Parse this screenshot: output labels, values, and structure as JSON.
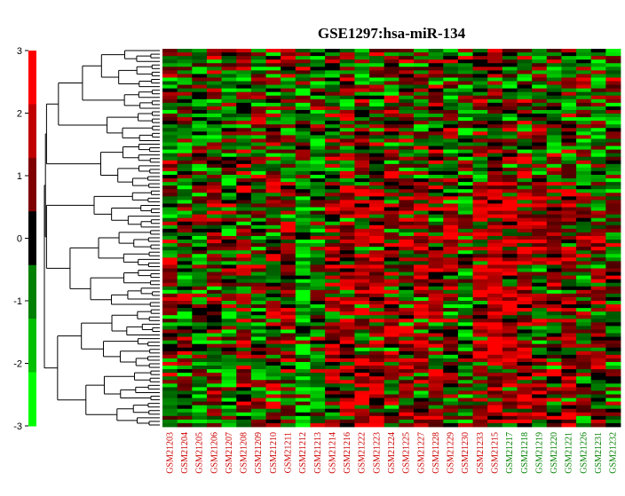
{
  "chart_data": {
    "type": "heatmap",
    "title": "GSE1297:hsa-miR-134",
    "color_scale": {
      "ticks": [
        3,
        2,
        1,
        0,
        -1,
        -2,
        -3
      ],
      "range": [
        -3,
        3
      ],
      "colors": [
        "#00ff00",
        "#00c000",
        "#008000",
        "#000000",
        "#800000",
        "#c00000",
        "#ff0000"
      ]
    },
    "columns": [
      {
        "label": "GSM21203",
        "color": "#cc0000"
      },
      {
        "label": "GSM21204",
        "color": "#cc0000"
      },
      {
        "label": "GSM21205",
        "color": "#cc0000"
      },
      {
        "label": "GSM21206",
        "color": "#cc0000"
      },
      {
        "label": "GSM21207",
        "color": "#cc0000"
      },
      {
        "label": "GSM21208",
        "color": "#cc0000"
      },
      {
        "label": "GSM21209",
        "color": "#cc0000"
      },
      {
        "label": "GSM21210",
        "color": "#cc0000"
      },
      {
        "label": "GSM21211",
        "color": "#cc0000"
      },
      {
        "label": "GSM21212",
        "color": "#cc0000"
      },
      {
        "label": "GSM21213",
        "color": "#cc0000"
      },
      {
        "label": "GSM21214",
        "color": "#cc0000"
      },
      {
        "label": "GSM21216",
        "color": "#cc0000"
      },
      {
        "label": "GSM21222",
        "color": "#cc0000"
      },
      {
        "label": "GSM21223",
        "color": "#cc0000"
      },
      {
        "label": "GSM21224",
        "color": "#cc0000"
      },
      {
        "label": "GSM21225",
        "color": "#cc0000"
      },
      {
        "label": "GSM21227",
        "color": "#cc0000"
      },
      {
        "label": "GSM21228",
        "color": "#cc0000"
      },
      {
        "label": "GSM21229",
        "color": "#cc0000"
      },
      {
        "label": "GSM21230",
        "color": "#cc0000"
      },
      {
        "label": "GSM21233",
        "color": "#cc0000"
      },
      {
        "label": "GSM21215",
        "color": "#cc0000"
      },
      {
        "label": "GSM21217",
        "color": "#008000"
      },
      {
        "label": "GSM21218",
        "color": "#008000"
      },
      {
        "label": "GSM21219",
        "color": "#008000"
      },
      {
        "label": "GSM21220",
        "color": "#008000"
      },
      {
        "label": "GSM21221",
        "color": "#008000"
      },
      {
        "label": "GSM21226",
        "color": "#008000"
      },
      {
        "label": "GSM21231",
        "color": "#008000"
      },
      {
        "label": "GSM21232",
        "color": "#008000"
      }
    ],
    "row_count": 105,
    "column_trend": [
      -0.4,
      -0.2,
      -0.6,
      0.2,
      -0.9,
      0.1,
      -0.5,
      -0.2,
      0.1,
      -1.2,
      -0.6,
      0.4,
      0.8,
      0.9,
      0.6,
      0.3,
      0.2,
      0.4,
      0.5,
      0.1,
      -0.8,
      0.7,
      1.4,
      1.2,
      1.0,
      0.3,
      0.4,
      0.5,
      -0.3,
      0.2,
      -0.1
    ],
    "row_cluster_order": "hierarchical dendrogram on left",
    "seed": 1297
  }
}
